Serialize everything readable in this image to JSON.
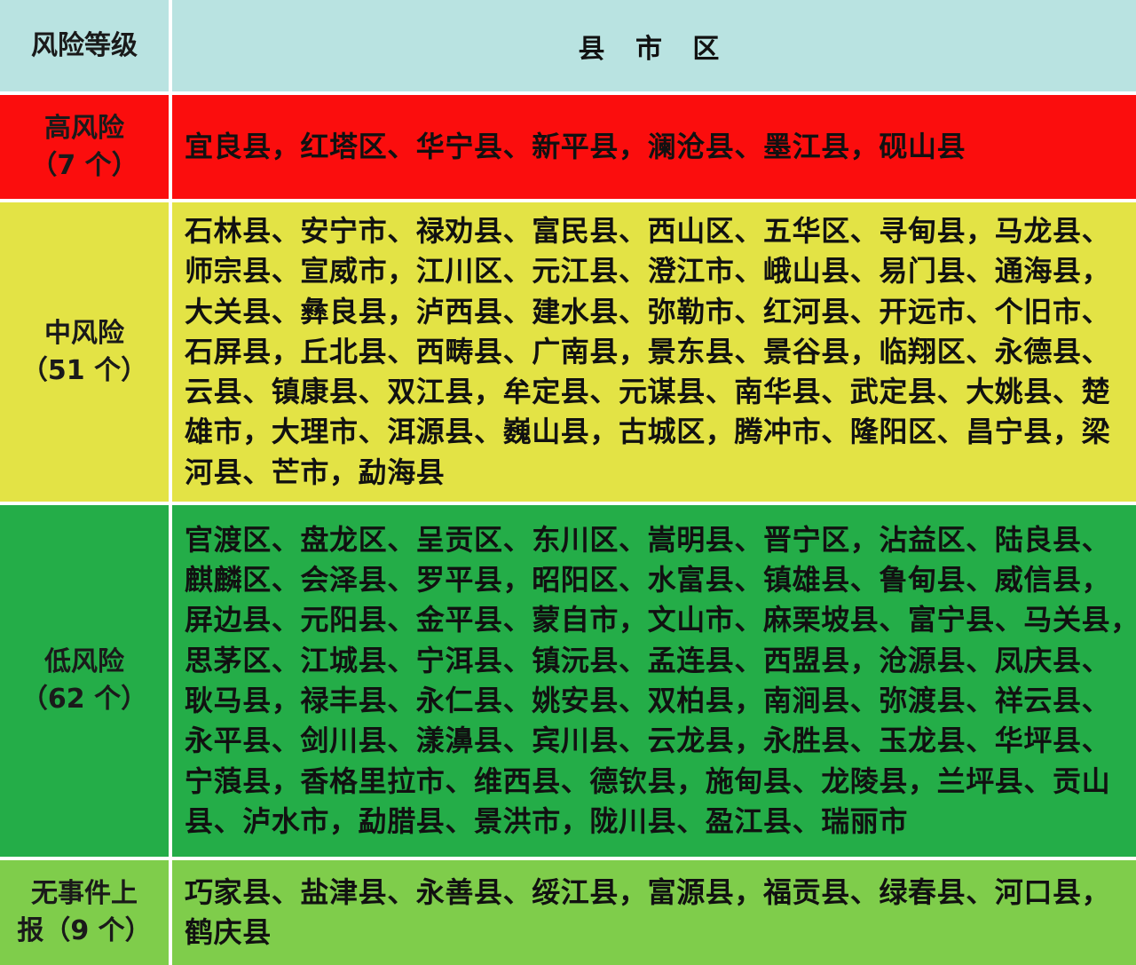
{
  "colors": {
    "header": "#b9e3e1",
    "high": "#fb0d0d",
    "medium": "#e3e345",
    "low": "#24ad48",
    "none": "#7fcd4b",
    "separator": "#ffffff"
  },
  "header": {
    "level": "风险等级",
    "areas": "县 市 区"
  },
  "rows": [
    {
      "level_lines": [
        "高风险",
        "（7 个）"
      ],
      "lines": [
        "宜良县，红塔区、华宁县、新平县，澜沧县、墨江县，砚山县"
      ]
    },
    {
      "level_lines": [
        "中风险",
        "（51 个）"
      ],
      "lines": [
        "石林县、安宁市、禄劝县、富民县、西山区、五华区、寻甸县，马龙县、",
        "师宗县、宣威市，江川区、元江县、澄江市、峨山县、易门县、通海县，",
        "大关县、彝良县，泸西县、建水县、弥勒市、红河县、开远市、个旧市、",
        "石屏县，丘北县、西畴县、广南县，景东县、景谷县，临翔区、永德县、",
        "云县、镇康县、双江县，牟定县、元谋县、南华县、武定县、大姚县、楚",
        "雄市，大理市、洱源县、巍山县，古城区，腾冲市、隆阳区、昌宁县，梁",
        "河县、芒市，勐海县"
      ]
    },
    {
      "level_lines": [
        "低风险",
        "（62 个）"
      ],
      "lines": [
        "官渡区、盘龙区、呈贡区、东川区、嵩明县、晋宁区，沾益区、陆良县、",
        "麒麟区、会泽县、罗平县，昭阳区、水富县、镇雄县、鲁甸县、威信县，",
        "屏边县、元阳县、金平县、蒙自市，文山市、麻栗坡县、富宁县、马关县，",
        "思茅区、江城县、宁洱县、镇沅县、孟连县、西盟县，沧源县、凤庆县、",
        "耿马县，禄丰县、永仁县、姚安县、双柏县，南涧县、弥渡县、祥云县、",
        "永平县、剑川县、漾濞县、宾川县、云龙县，永胜县、玉龙县、华坪县、",
        "宁蒗县，香格里拉市、维西县、德钦县，施甸县、龙陵县，兰坪县、贡山",
        "县、泸水市，勐腊县、景洪市，陇川县、盈江县、瑞丽市"
      ]
    },
    {
      "level_lines": [
        "无事件上",
        "报（9 个）"
      ],
      "lines": [
        "巧家县、盐津县、永善县、绥江县，富源县，福贡县、绿春县、河口县，",
        "鹤庆县"
      ]
    }
  ]
}
